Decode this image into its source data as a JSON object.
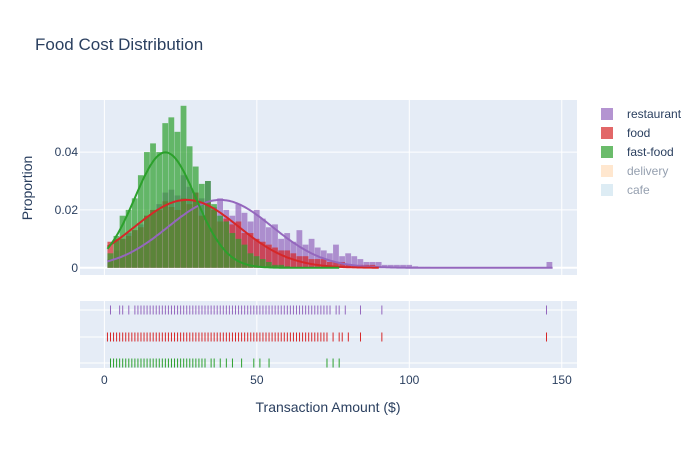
{
  "chart_data": {
    "type": "histogram",
    "title": "Food Cost Distribution",
    "xlabel": "Transaction Amount ($)",
    "ylabel": "Proportion",
    "xlim": [
      -8,
      155
    ],
    "ylim": [
      -0.0025,
      0.058
    ],
    "x_ticks": [
      0,
      50,
      100,
      150
    ],
    "y_ticks": [
      0,
      0.02,
      0.04
    ],
    "y_tick_labels": [
      "0",
      "0.02",
      "0.04"
    ],
    "bin_start": 1,
    "bin_width": 2,
    "legend": [
      {
        "name": "restaurant",
        "color": "#9467bd",
        "visible": true
      },
      {
        "name": "food",
        "color": "#d62728",
        "visible": true
      },
      {
        "name": "fast-food",
        "color": "#2ca02c",
        "visible": true
      },
      {
        "name": "delivery",
        "color": "#ffbb78",
        "visible": false
      },
      {
        "name": "cafe",
        "color": "#9ecae1",
        "visible": false
      }
    ],
    "series": [
      {
        "name": "restaurant",
        "color": "#9467bd",
        "kde_mean": 38,
        "kde_sd": 17,
        "hist": [
          0.003,
          0.006,
          0.01,
          0.012,
          0.013,
          0.015,
          0.018,
          0.02,
          0.022,
          0.026,
          0.027,
          0.025,
          0.032,
          0.028,
          0.026,
          0.024,
          0.03,
          0.021,
          0.024,
          0.02,
          0.018,
          0.022,
          0.019,
          0.016,
          0.02,
          0.017,
          0.014,
          0.015,
          0.01,
          0.012,
          0.009,
          0.013,
          0.008,
          0.01,
          0.007,
          0.006,
          0.005,
          0.008,
          0.004,
          0.005,
          0.004,
          0.003,
          0.002,
          0.002,
          0.002,
          0.001,
          0.001,
          0.001,
          0.001,
          0.001,
          0.0005,
          0.0003,
          0.0003,
          0.0002,
          0.0002,
          0.0001,
          0.0001,
          0.0001,
          0.0001,
          0.0001,
          0.0001,
          0.0001,
          0.0001,
          0.0001,
          0.0001,
          0.0001,
          0.0001,
          0.0001,
          0.0001,
          0.0001,
          0.0001,
          0.0001,
          0.002
        ],
        "rug": [
          2,
          5,
          6,
          8,
          10,
          11,
          12,
          13,
          14,
          15,
          16,
          17,
          18,
          19,
          20,
          21,
          22,
          23,
          24,
          25,
          26,
          27,
          28,
          29,
          30,
          31,
          32,
          33,
          34,
          35,
          36,
          37,
          38,
          39,
          40,
          41,
          42,
          43,
          44,
          45,
          46,
          47,
          48,
          49,
          50,
          51,
          52,
          53,
          54,
          55,
          56,
          57,
          58,
          59,
          60,
          61,
          62,
          63,
          64,
          65,
          66,
          67,
          68,
          69,
          70,
          71,
          72,
          73,
          74,
          76,
          77,
          79,
          84,
          91,
          145
        ]
      },
      {
        "name": "food",
        "color": "#d62728",
        "kde_mean": 27,
        "kde_sd": 17,
        "hist": [
          0.009,
          0.01,
          0.01,
          0.011,
          0.013,
          0.014,
          0.018,
          0.02,
          0.02,
          0.023,
          0.021,
          0.02,
          0.024,
          0.022,
          0.026,
          0.018,
          0.023,
          0.02,
          0.016,
          0.017,
          0.015,
          0.016,
          0.012,
          0.012,
          0.01,
          0.009,
          0.008,
          0.007,
          0.006,
          0.006,
          0.005,
          0.004,
          0.004,
          0.003,
          0.003,
          0.003,
          0.002,
          0.002,
          0.002,
          0.001,
          0.001,
          0.001,
          0.001,
          0.001,
          0.0005
        ],
        "rug": [
          1,
          2,
          3,
          4,
          5,
          6,
          7,
          8,
          9,
          10,
          11,
          12,
          13,
          14,
          15,
          16,
          17,
          18,
          19,
          20,
          21,
          22,
          23,
          24,
          25,
          26,
          27,
          28,
          29,
          30,
          31,
          32,
          33,
          34,
          35,
          36,
          37,
          38,
          39,
          40,
          41,
          42,
          43,
          44,
          45,
          46,
          47,
          48,
          49,
          50,
          51,
          52,
          53,
          54,
          55,
          56,
          57,
          58,
          59,
          60,
          61,
          62,
          63,
          64,
          65,
          66,
          67,
          68,
          69,
          70,
          71,
          72,
          73,
          75,
          77,
          78,
          80,
          84,
          91,
          145
        ]
      },
      {
        "name": "fast-food",
        "color": "#2ca02c",
        "kde_mean": 20,
        "kde_sd": 10,
        "hist": [
          0.005,
          0.011,
          0.018,
          0.02,
          0.024,
          0.032,
          0.04,
          0.043,
          0.04,
          0.05,
          0.052,
          0.047,
          0.056,
          0.042,
          0.035,
          0.029,
          0.03,
          0.022,
          0.018,
          0.016,
          0.012,
          0.01,
          0.008,
          0.005,
          0.004,
          0.003,
          0.002,
          0.001,
          0.001,
          0.0005
        ],
        "rug": [
          2,
          3,
          4,
          5,
          6,
          7,
          8,
          9,
          10,
          11,
          12,
          13,
          14,
          15,
          16,
          17,
          18,
          19,
          20,
          21,
          22,
          23,
          24,
          25,
          26,
          27,
          28,
          29,
          30,
          31,
          32,
          33,
          35,
          36,
          38,
          40,
          42,
          45,
          49,
          51,
          54,
          73,
          75,
          77
        ]
      }
    ]
  }
}
